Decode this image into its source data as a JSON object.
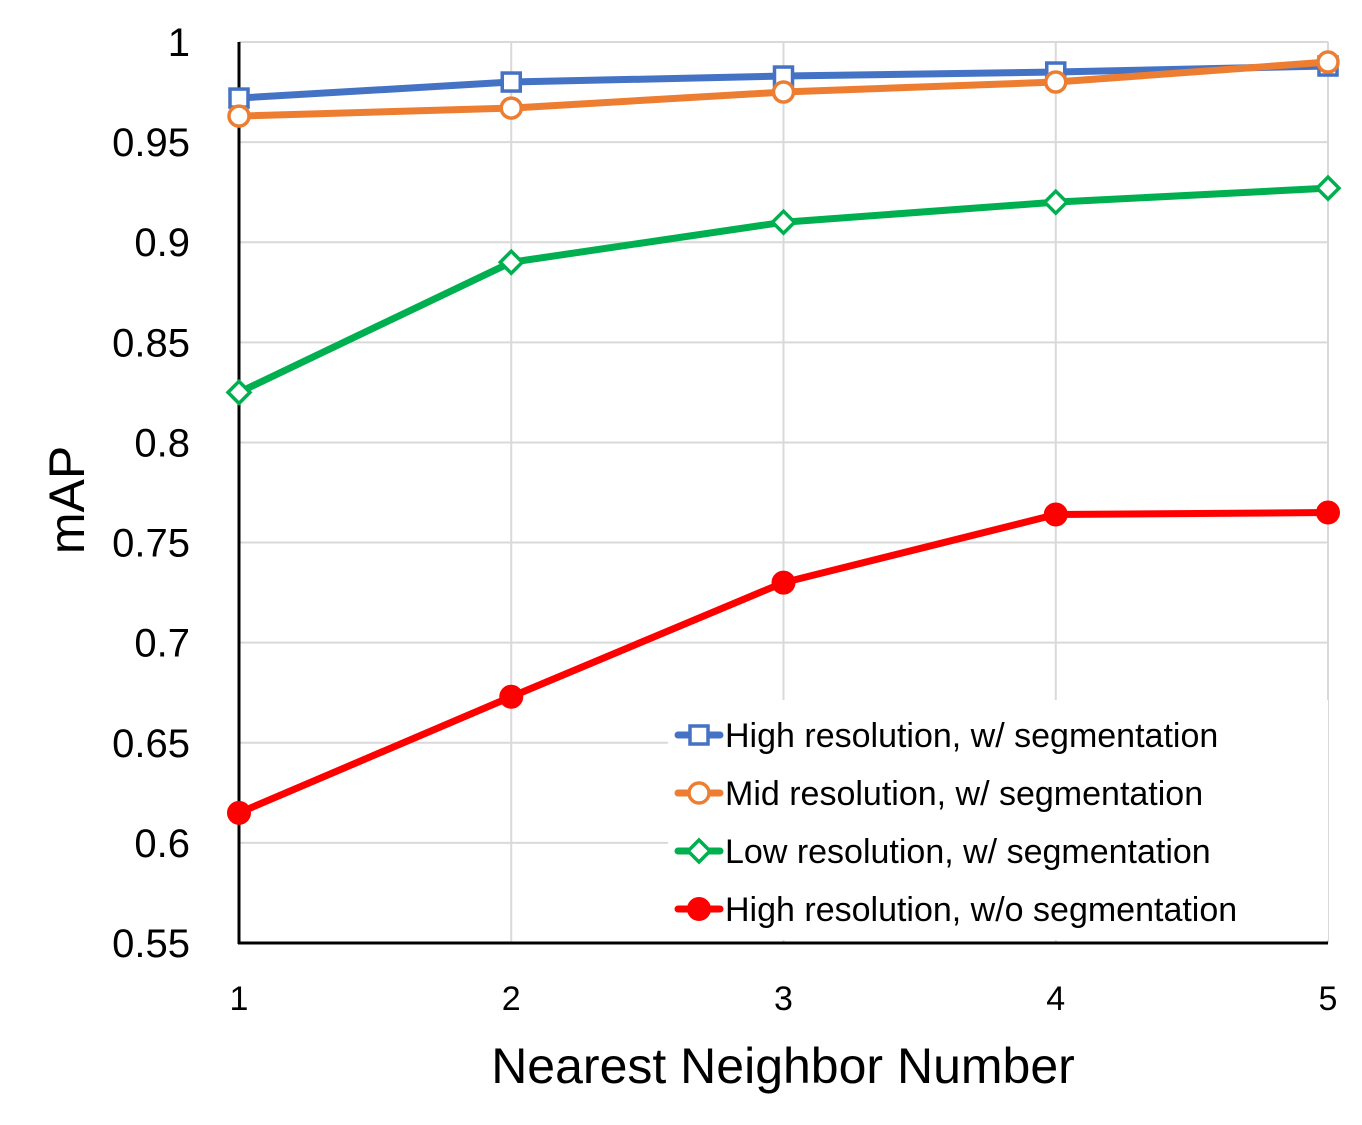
{
  "chart_data": {
    "type": "line",
    "title": "",
    "xlabel": "Nearest Neighbor Number",
    "ylabel": "mAP",
    "x": [
      1,
      2,
      3,
      4,
      5
    ],
    "xticks": [
      "1",
      "2",
      "3",
      "4",
      "5"
    ],
    "yticks": [
      "0.55",
      "0.6",
      "0.65",
      "0.7",
      "0.75",
      "0.8",
      "0.85",
      "0.9",
      "0.95",
      "1"
    ],
    "ylim": [
      0.55,
      1.0
    ],
    "xlim": [
      1,
      5
    ],
    "grid": true,
    "legend_position": "bottom-right",
    "series": [
      {
        "name": "High resolution, w/ segmentation",
        "color": "#4472C4",
        "marker": "square-open",
        "values": [
          0.972,
          0.98,
          0.983,
          0.985,
          0.988
        ]
      },
      {
        "name": "Mid resolution, w/ segmentation",
        "color": "#ED7D31",
        "marker": "circle-open",
        "values": [
          0.963,
          0.967,
          0.975,
          0.98,
          0.99
        ]
      },
      {
        "name": "Low resolution, w/ segmentation",
        "color": "#00B050",
        "marker": "diamond-open",
        "values": [
          0.825,
          0.89,
          0.91,
          0.92,
          0.927
        ]
      },
      {
        "name": "High resolution, w/o segmentation",
        "color": "#FF0000",
        "marker": "circle-filled",
        "values": [
          0.615,
          0.673,
          0.73,
          0.764,
          0.765
        ]
      }
    ]
  }
}
